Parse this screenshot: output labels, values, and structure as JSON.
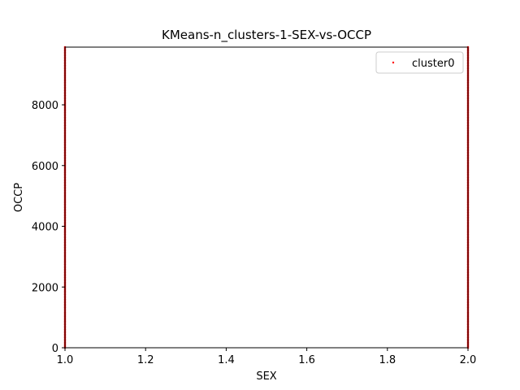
{
  "chart_data": {
    "type": "scatter",
    "title": "KMeans-n_clusters-1-SEX-vs-OCCP",
    "xlabel": "SEX",
    "ylabel": "OCCP",
    "xlim": [
      1.0,
      2.0
    ],
    "ylim": [
      0,
      9900
    ],
    "xticks": [
      1.0,
      1.2,
      1.4,
      1.6,
      1.8,
      2.0
    ],
    "xtick_labels": [
      "1.0",
      "1.2",
      "1.4",
      "1.6",
      "1.8",
      "2.0"
    ],
    "yticks": [
      0,
      2000,
      4000,
      6000,
      8000
    ],
    "ytick_labels": [
      "0",
      "2000",
      "4000",
      "6000",
      "8000"
    ],
    "grid": false,
    "legend_position": "top-right",
    "series": [
      {
        "name": "cluster0",
        "color": "#ff0000",
        "x_values": [
          1,
          2
        ],
        "y_range": [
          0,
          9900
        ]
      }
    ]
  }
}
